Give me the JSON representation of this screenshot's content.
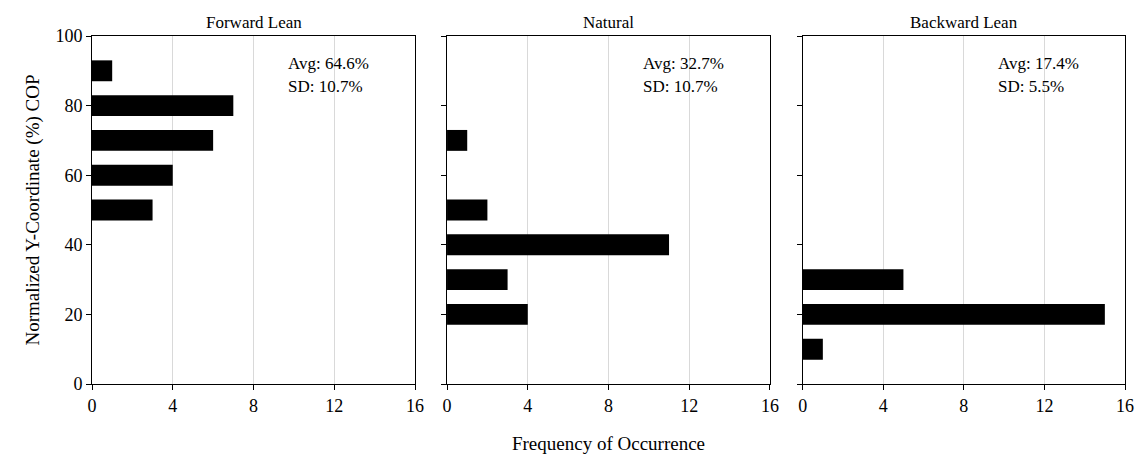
{
  "chart_data": [
    {
      "type": "bar",
      "title": "Forward Lean",
      "orientation": "horizontal",
      "y": [
        90,
        80,
        70,
        60,
        50
      ],
      "values": [
        1,
        7,
        6,
        4,
        3
      ],
      "color": "#000000",
      "xlim": [
        0,
        16
      ],
      "xticks": [
        0,
        4,
        8,
        12,
        16
      ],
      "ylim": [
        0,
        100
      ],
      "yticks": [
        0,
        20,
        40,
        60,
        80,
        100
      ],
      "y_label": "Normalized Y-Coordinate (%) COP",
      "annotations": [
        "Avg: 64.6%",
        "SD: 10.7%"
      ],
      "grid": true
    },
    {
      "type": "bar",
      "title": "Natural",
      "orientation": "horizontal",
      "y": [
        70,
        50,
        40,
        30,
        20
      ],
      "values": [
        1,
        2,
        11,
        3,
        4
      ],
      "color": "#000000",
      "xlim": [
        0,
        16
      ],
      "xticks": [
        0,
        4,
        8,
        12,
        16
      ],
      "ylim": [
        0,
        100
      ],
      "yticks": [
        0,
        20,
        40,
        60,
        80,
        100
      ],
      "x_label": "Frequency of Occurrence",
      "annotations": [
        "Avg: 32.7%",
        "SD: 10.7%"
      ],
      "grid": true,
      "tick_labels": "x"
    },
    {
      "type": "bar",
      "title": "Backward Lean",
      "orientation": "horizontal",
      "y": [
        30,
        20,
        10
      ],
      "values": [
        5,
        15,
        1
      ],
      "color": "#000000",
      "xlim": [
        0,
        16
      ],
      "xticks": [
        0,
        4,
        8,
        12,
        16
      ],
      "ylim": [
        0,
        100
      ],
      "yticks": [
        0,
        20,
        40,
        60,
        80,
        100
      ],
      "annotations": [
        "Avg: 17.4%",
        "SD: 5.5%"
      ],
      "grid": true,
      "tick_labels": "x"
    }
  ]
}
